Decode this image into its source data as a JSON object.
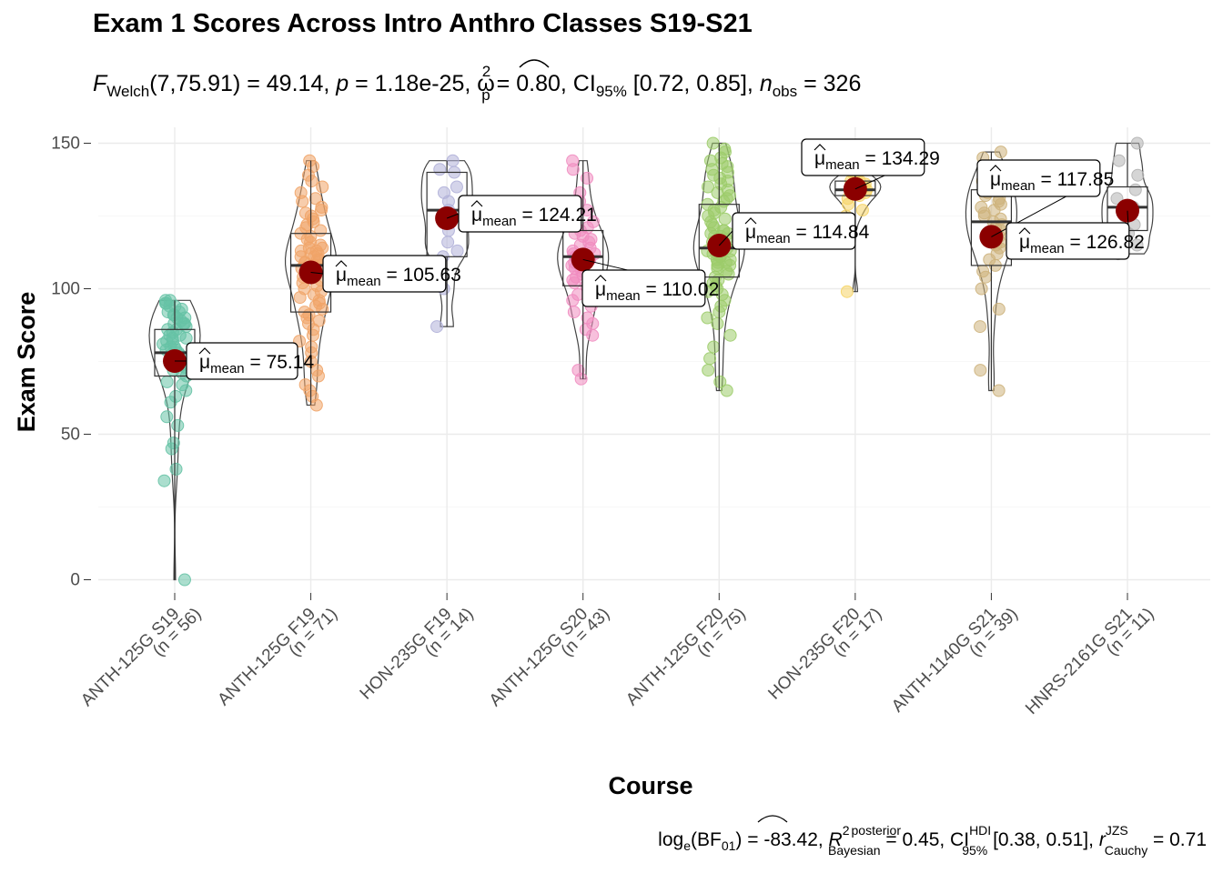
{
  "chart_data": {
    "type": "violin-box-scatter",
    "title": "Exam 1 Scores Across Intro Anthro Classes S19-S21",
    "subtitle": {
      "F_sub": "Welch",
      "df": "(7,75.91)",
      "F": "49.14",
      "p": "1.18e-25",
      "omega_sub": "p",
      "omega_sup": "2",
      "omega": "0.80",
      "ci_sub": "95%",
      "ci": "[0.72, 0.85]",
      "n_sub": "obs",
      "n": "326"
    },
    "caption": {
      "bf_sub": "01",
      "bf_base": "e",
      "bf": "-83.42",
      "r2_sup": "2",
      "r2_sup_label": "posterior",
      "r2_sub": "Bayesian",
      "r2": "0.45",
      "ci_sup": "HDI",
      "ci_sub": "95%",
      "ci": "[0.38, 0.51]",
      "r_sup": "JZS",
      "r_sub": "Cauchy",
      "r": "0.71"
    },
    "xlabel": "Course",
    "ylabel": "Exam Score",
    "ylim": [
      -5,
      155
    ],
    "yticks": [
      0,
      50,
      100,
      150
    ],
    "grid": true,
    "mean_label_prefix": "μ",
    "mean_label_sub": "mean",
    "categories": [
      "ANTH-125G S19",
      "ANTH-125G F19",
      "HON-235G F19",
      "ANTH-125G S20",
      "ANTH-125G F20",
      "HON-235G F20",
      "ANTH-1140G S21",
      "HNRS-2161G S21"
    ],
    "n_labels": [
      "(n = 56)",
      "(n = 71)",
      "(n = 14)",
      "(n = 43)",
      "(n = 75)",
      "(n = 17)",
      "(n = 39)",
      "(n = 11)"
    ],
    "means": [
      75.14,
      105.63,
      124.21,
      110.02,
      114.84,
      134.29,
      117.85,
      126.82
    ],
    "mean_labels": [
      "75.14",
      "105.63",
      "124.21",
      "110.02",
      "114.84",
      "134.29",
      "117.85",
      "126.82"
    ],
    "colors": [
      "#66c2a5",
      "#f0a468",
      "#b0b0d8",
      "#f08cc0",
      "#9ccc6a",
      "#f5d466",
      "#cdb27c",
      "#b3b3b3"
    ],
    "mean_point_color": "#8b0000",
    "boxes": [
      {
        "q1": 70,
        "median": 78,
        "q3": 86,
        "low": 0,
        "high": 96
      },
      {
        "q1": 92,
        "median": 108,
        "q3": 119,
        "low": 60,
        "high": 144
      },
      {
        "q1": 111,
        "median": 127,
        "q3": 140,
        "low": 87,
        "high": 144
      },
      {
        "q1": 101,
        "median": 111,
        "q3": 120,
        "low": 69,
        "high": 144
      },
      {
        "q1": 104,
        "median": 114,
        "q3": 129,
        "low": 65,
        "high": 150
      },
      {
        "q1": 132,
        "median": 134,
        "q3": 137,
        "low": 99,
        "high": 139
      },
      {
        "q1": 108,
        "median": 123,
        "q3": 134,
        "low": 65,
        "high": 147
      },
      {
        "q1": 120,
        "median": 128,
        "q3": 135,
        "low": 112,
        "high": 150
      }
    ],
    "points": [
      [
        0,
        34,
        38,
        45,
        47,
        53,
        56,
        61,
        63,
        65,
        67,
        68,
        70,
        71,
        72,
        73,
        74,
        75,
        76,
        77,
        77,
        78,
        78,
        79,
        80,
        80,
        81,
        82,
        82,
        83,
        84,
        84,
        85,
        86,
        86,
        87,
        88,
        88,
        89,
        90,
        90,
        91,
        92,
        92,
        93,
        94,
        94,
        95,
        95,
        96,
        96,
        74,
        79,
        83,
        88,
        91
      ],
      [
        60,
        63,
        65,
        67,
        70,
        72,
        75,
        78,
        80,
        82,
        84,
        86,
        88,
        89,
        90,
        91,
        92,
        93,
        94,
        95,
        96,
        97,
        98,
        99,
        100,
        101,
        102,
        103,
        104,
        105,
        105,
        106,
        106,
        107,
        107,
        108,
        108,
        109,
        109,
        110,
        110,
        111,
        111,
        112,
        112,
        113,
        113,
        114,
        114,
        115,
        116,
        117,
        118,
        119,
        120,
        121,
        122,
        123,
        124,
        125,
        126,
        127,
        128,
        130,
        131,
        133,
        135,
        137,
        139,
        142,
        144
      ],
      [
        87,
        100,
        111,
        113,
        116,
        120,
        124,
        127,
        130,
        133,
        135,
        140,
        141,
        144
      ],
      [
        69,
        72,
        84,
        86,
        88,
        90,
        92,
        94,
        96,
        98,
        100,
        101,
        102,
        103,
        104,
        105,
        106,
        107,
        108,
        109,
        110,
        110,
        111,
        111,
        112,
        112,
        113,
        114,
        115,
        116,
        117,
        118,
        119,
        120,
        121,
        123,
        125,
        127,
        130,
        133,
        138,
        141,
        144
      ],
      [
        65,
        68,
        72,
        76,
        80,
        84,
        88,
        90,
        92,
        94,
        96,
        98,
        99,
        100,
        101,
        102,
        103,
        104,
        105,
        106,
        107,
        108,
        108,
        109,
        109,
        110,
        110,
        111,
        111,
        112,
        112,
        113,
        113,
        114,
        114,
        115,
        115,
        116,
        116,
        117,
        117,
        118,
        118,
        119,
        119,
        120,
        120,
        121,
        122,
        123,
        124,
        125,
        126,
        127,
        128,
        129,
        130,
        131,
        132,
        133,
        134,
        135,
        136,
        137,
        138,
        139,
        140,
        141,
        142,
        143,
        144,
        145,
        147,
        148,
        150
      ],
      [
        99,
        125,
        127,
        129,
        131,
        132,
        133,
        134,
        134,
        135,
        135,
        136,
        136,
        137,
        137,
        138,
        139
      ],
      [
        65,
        72,
        87,
        93,
        100,
        104,
        106,
        108,
        110,
        112,
        114,
        115,
        116,
        117,
        118,
        119,
        120,
        121,
        122,
        123,
        124,
        125,
        126,
        127,
        128,
        129,
        130,
        131,
        132,
        133,
        134,
        135,
        136,
        137,
        138,
        140,
        142,
        145,
        147
      ],
      [
        112,
        115,
        119,
        122,
        125,
        128,
        131,
        134,
        139,
        144,
        150
      ]
    ]
  }
}
